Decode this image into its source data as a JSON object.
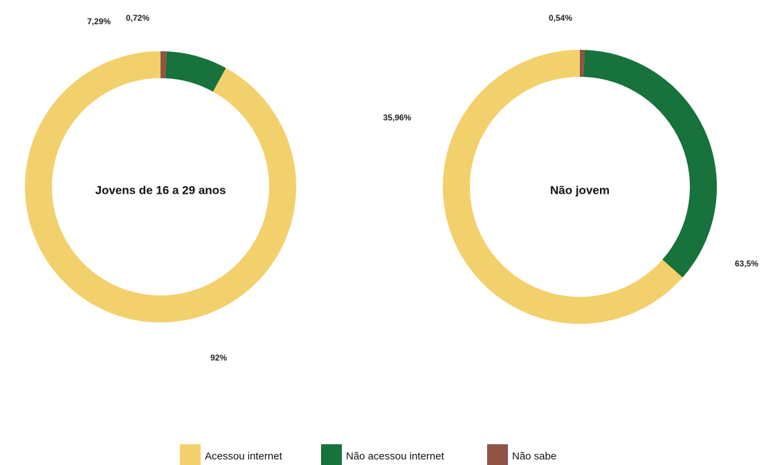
{
  "chart_data": [
    {
      "type": "pie",
      "variant": "donut",
      "title": "Jovens de 16 a 29 anos",
      "slices": [
        {
          "category": "Acessou internet",
          "value": 92,
          "label": "92%"
        },
        {
          "category": "Não acessou internet",
          "value": 7.29,
          "label": "7,29%"
        },
        {
          "category": "Não sabe",
          "value": 0.72,
          "label": "0,72%"
        }
      ]
    },
    {
      "type": "pie",
      "variant": "donut",
      "title": "Não jovem",
      "slices": [
        {
          "category": "Acessou internet",
          "value": 63.5,
          "label": "63,5%"
        },
        {
          "category": "Não acessou internet",
          "value": 35.96,
          "label": "35,96%"
        },
        {
          "category": "Não sabe",
          "value": 0.54,
          "label": "0,54%"
        }
      ]
    }
  ],
  "legend": {
    "placement": "bottom-center",
    "items": [
      {
        "label": "Acessou internet",
        "color": "#f2d06b"
      },
      {
        "label": "Não acessou internet",
        "color": "#17723b"
      },
      {
        "label": "Não sabe",
        "color": "#8f5446"
      }
    ]
  },
  "colors": {
    "Acessou internet": "#f2d06b",
    "Não acessou internet": "#17723b",
    "Não sabe": "#8f5446"
  }
}
